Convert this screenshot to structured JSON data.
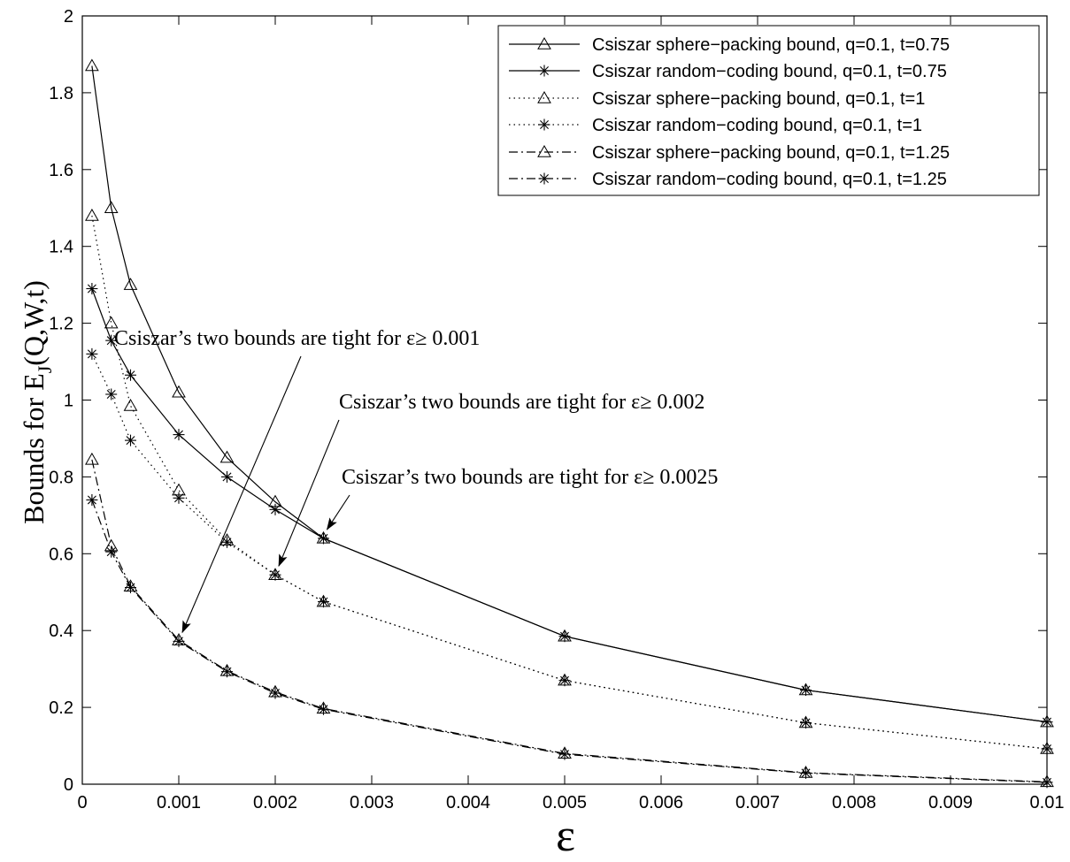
{
  "chart_data": {
    "type": "line",
    "title": "",
    "xlabel": "ε",
    "ylabel": "Bounds for E",
    "ylabel_sub": "J",
    "ylabel_suffix": "(Q,W,t)",
    "xlim": [
      0,
      0.01
    ],
    "ylim": [
      0,
      2
    ],
    "grid": false,
    "legend_position": "top-right",
    "x_ticks": [
      "0",
      "0.001",
      "0.002",
      "0.003",
      "0.004",
      "0.005",
      "0.006",
      "0.007",
      "0.008",
      "0.009",
      "0.01"
    ],
    "y_ticks": [
      "0",
      "0.2",
      "0.4",
      "0.6",
      "0.8",
      "1",
      "1.2",
      "1.4",
      "1.6",
      "1.8",
      "2"
    ],
    "x": [
      0.0001,
      0.0003,
      0.0005,
      0.001,
      0.0015,
      0.002,
      0.0025,
      0.005,
      0.0075,
      0.01
    ],
    "series": [
      {
        "name": "Csiszar sphere−packing bound, q=0.1, t=0.75",
        "marker": "triangle",
        "line": "solid",
        "values": [
          1.87,
          1.5,
          1.3,
          1.02,
          0.85,
          0.735,
          0.64,
          0.385,
          0.245,
          0.162
        ]
      },
      {
        "name": "Csiszar random−coding bound, q=0.1, t=0.75",
        "marker": "star",
        "line": "solid",
        "values": [
          1.29,
          1.155,
          1.065,
          0.91,
          0.8,
          0.715,
          0.64,
          0.385,
          0.245,
          0.162
        ]
      },
      {
        "name": "Csiszar sphere−packing bound, q=0.1, t=1",
        "marker": "triangle",
        "line": "dotted",
        "values": [
          1.48,
          1.2,
          0.985,
          0.765,
          0.635,
          0.545,
          0.475,
          0.27,
          0.16,
          0.092
        ]
      },
      {
        "name": "Csiszar random−coding bound, q=0.1, t=1",
        "marker": "star",
        "line": "dotted",
        "values": [
          1.12,
          1.015,
          0.895,
          0.745,
          0.63,
          0.545,
          0.475,
          0.27,
          0.16,
          0.092
        ]
      },
      {
        "name": "Csiszar sphere−packing bound, q=0.1, t=1.25",
        "marker": "triangle",
        "line": "dashdot",
        "values": [
          0.845,
          0.62,
          0.515,
          0.375,
          0.295,
          0.24,
          0.197,
          0.08,
          0.03,
          0.006
        ]
      },
      {
        "name": "Csiszar random−coding bound, q=0.1, t=1.25",
        "marker": "star",
        "line": "dashdot",
        "values": [
          0.74,
          0.605,
          0.512,
          0.372,
          0.293,
          0.237,
          0.195,
          0.078,
          0.029,
          0.005
        ]
      }
    ],
    "annotations": [
      {
        "text": "Csiszar’s two bounds are tight for ε≥ 0.001",
        "target": [
          0.001,
          0.372
        ]
      },
      {
        "text": "Csiszar’s two bounds are tight for ε≥ 0.002",
        "target": [
          0.002,
          0.545
        ]
      },
      {
        "text": "Csiszar’s two bounds are tight for ε≥ 0.0025",
        "target": [
          0.0025,
          0.64
        ]
      }
    ]
  }
}
